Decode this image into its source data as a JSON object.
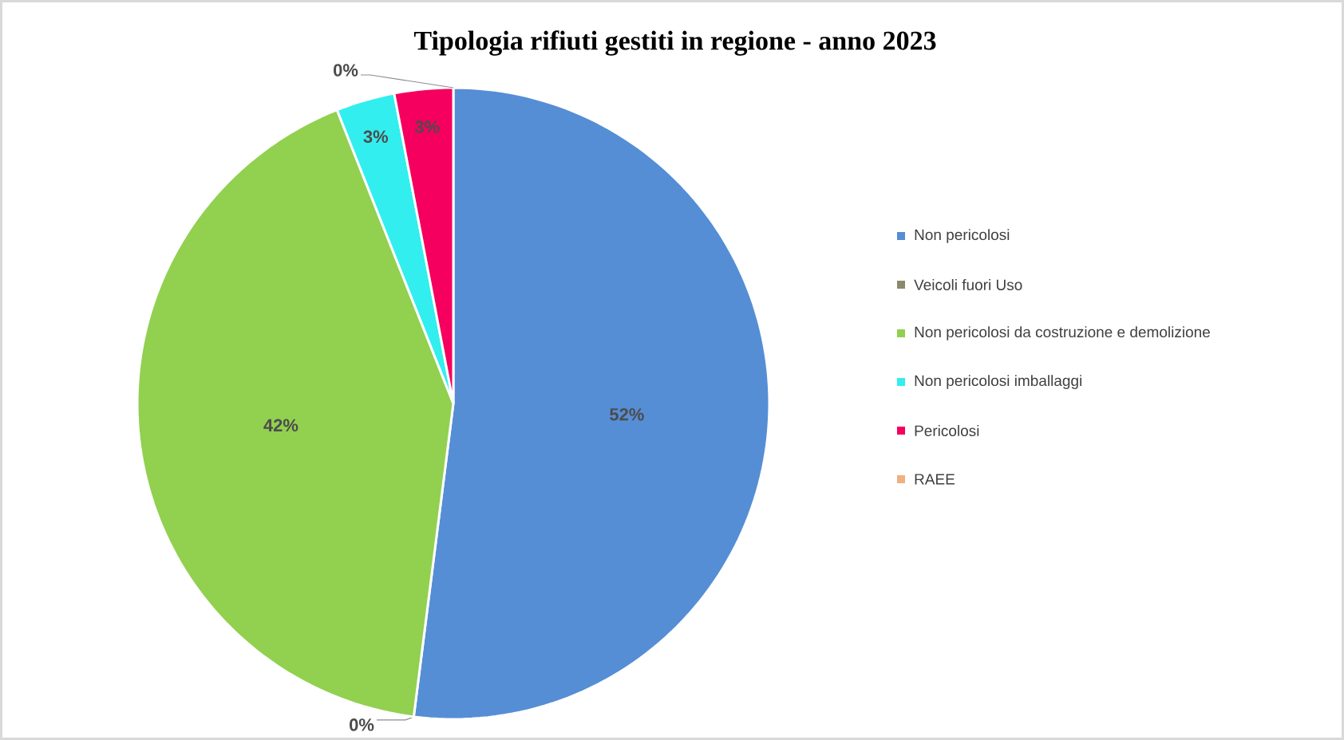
{
  "chart_data": {
    "type": "pie",
    "title": "Tipologia rifiuti gestiti in regione - anno 2023",
    "categories": [
      "Non pericolosi",
      "Veicoli fuori Uso",
      "Non pericolosi da costruzione e demolizione",
      "Non pericolosi imballaggi",
      "Pericolosi",
      "RAEE"
    ],
    "values": [
      52,
      0,
      42,
      3,
      3,
      0
    ],
    "colors": [
      "#558ed5",
      "#8b8b6b",
      "#92d050",
      "#33eeee",
      "#f5005f",
      "#f0b080"
    ],
    "value_labels": [
      "52%",
      "0%",
      "42%",
      "3%",
      "3%",
      "0%"
    ],
    "legend": "right"
  }
}
